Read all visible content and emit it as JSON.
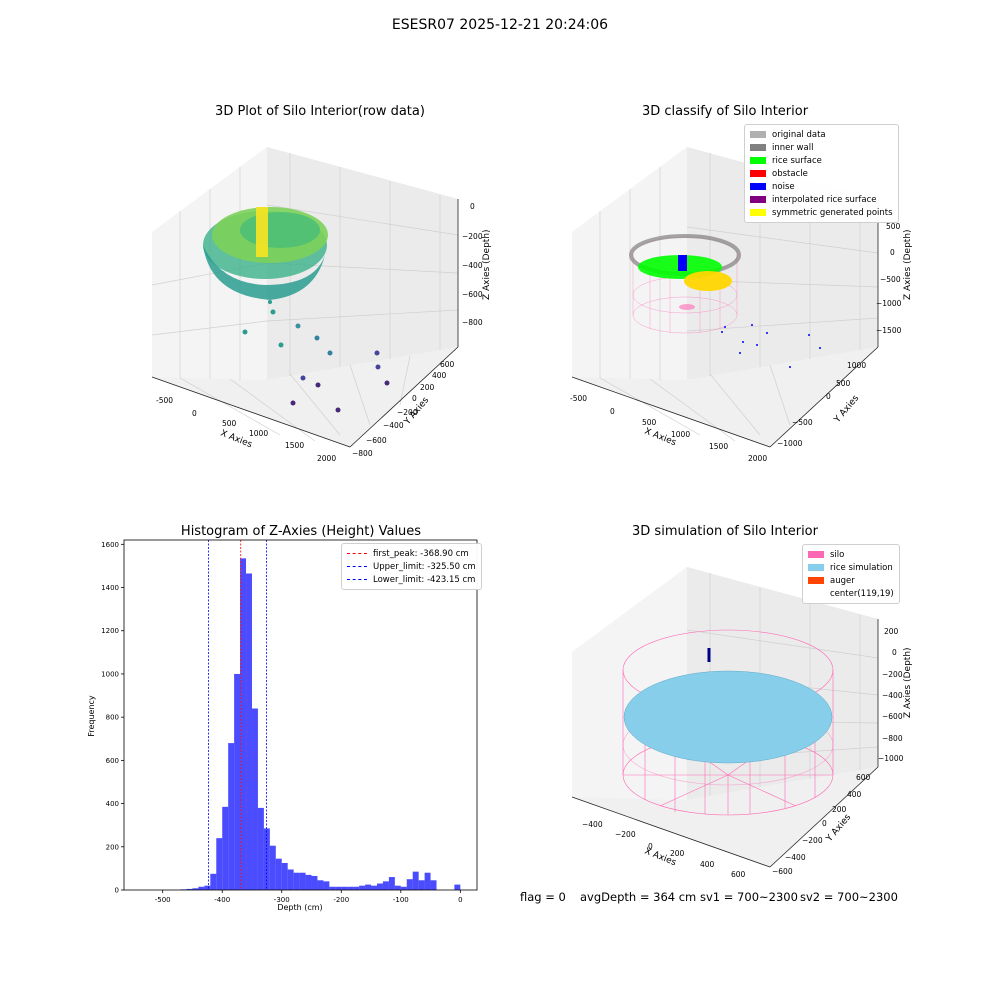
{
  "suptitle": "ESESR07 2025-12-21 20:24:06",
  "status": {
    "flag": "flag = 0",
    "avg": "avgDepth = 364 cm",
    "sv1": "sv1 = 700~2300",
    "sv2": "sv2 = 700~2300"
  },
  "plot1": {
    "title": "3D Plot of Silo Interior(row data)",
    "xlabel": "X Axies",
    "ylabel": "Y Axies",
    "zlabel": "Z Axies (Depth)",
    "xticks": [
      "-500",
      "0",
      "500",
      "1000",
      "1500",
      "2000"
    ],
    "yticks": [
      "−800",
      "−600",
      "−400",
      "−200",
      "0",
      "200",
      "400",
      "600"
    ],
    "zticks": [
      "0",
      "−200",
      "−400",
      "−600",
      "−800"
    ]
  },
  "plot2": {
    "title": "3D classify of Silo Interior",
    "xlabel": "X Axies",
    "ylabel": "Y Axies",
    "zlabel": "Z Axies (Depth)",
    "xticks": [
      "-500",
      "0",
      "500",
      "1000",
      "1500",
      "2000"
    ],
    "yticks": [
      "−1000",
      "−500",
      "0",
      "500",
      "1000"
    ],
    "zticks": [
      "500",
      "0",
      "−500",
      "−1000",
      "−1500"
    ],
    "legend": [
      {
        "label": "original data",
        "color": "#b0b0b0"
      },
      {
        "label": "inner wall",
        "color": "#808080"
      },
      {
        "label": "rice surface",
        "color": "#00ff00"
      },
      {
        "label": "obstacle",
        "color": "#ff0000"
      },
      {
        "label": "noise",
        "color": "#0000ff"
      },
      {
        "label": "interpolated rice surface",
        "color": "#800080"
      },
      {
        "label": "symmetric generated points",
        "color": "#ffff00"
      }
    ]
  },
  "plot4": {
    "title": "3D simulation of Silo Interior",
    "xlabel": "X Axies",
    "ylabel": "Y Axies",
    "zlabel": "Z Axies (Depth)",
    "xticks": [
      "−400",
      "−200",
      "0",
      "200",
      "400",
      "600"
    ],
    "yticks": [
      "−600",
      "−400",
      "−200",
      "0",
      "200",
      "400",
      "600"
    ],
    "zticks": [
      "200",
      "0",
      "−200",
      "−400",
      "−600",
      "−800",
      "−1000"
    ],
    "legend": [
      {
        "label": "silo",
        "color": "#ff69b4"
      },
      {
        "label": "rice simulation",
        "color": "#87ceeb"
      },
      {
        "label": "auger",
        "color": "#ff4500"
      },
      {
        "label": "center(119,19)",
        "color": ""
      }
    ]
  },
  "chart_data": {
    "type": "bar",
    "title": "Histogram of Z-Axies (Height) Values",
    "xlabel": "Depth (cm)",
    "ylabel": "Frequency",
    "xlim": [
      -565,
      28
    ],
    "ylim": [
      0,
      1620
    ],
    "xticks": [
      -500,
      -400,
      -300,
      -200,
      -100,
      0
    ],
    "yticks": [
      0,
      200,
      400,
      600,
      800,
      1000,
      1200,
      1400,
      1600
    ],
    "bar_color": "#0000ff",
    "bin_width": 10,
    "bins": [
      {
        "left": -470,
        "value": 3
      },
      {
        "left": -460,
        "value": 5
      },
      {
        "left": -450,
        "value": 8
      },
      {
        "left": -440,
        "value": 15
      },
      {
        "left": -430,
        "value": 20
      },
      {
        "left": -420,
        "value": 75
      },
      {
        "left": -410,
        "value": 240
      },
      {
        "left": -400,
        "value": 385
      },
      {
        "left": -390,
        "value": 680
      },
      {
        "left": -380,
        "value": 1000
      },
      {
        "left": -370,
        "value": 1535
      },
      {
        "left": -360,
        "value": 1465
      },
      {
        "left": -350,
        "value": 840
      },
      {
        "left": -340,
        "value": 380
      },
      {
        "left": -330,
        "value": 285
      },
      {
        "left": -320,
        "value": 205
      },
      {
        "left": -310,
        "value": 145
      },
      {
        "left": -300,
        "value": 125
      },
      {
        "left": -290,
        "value": 95
      },
      {
        "left": -280,
        "value": 80
      },
      {
        "left": -270,
        "value": 80
      },
      {
        "left": -260,
        "value": 70
      },
      {
        "left": -250,
        "value": 65
      },
      {
        "left": -240,
        "value": 45
      },
      {
        "left": -230,
        "value": 40
      },
      {
        "left": -220,
        "value": 15
      },
      {
        "left": -210,
        "value": 15
      },
      {
        "left": -200,
        "value": 15
      },
      {
        "left": -190,
        "value": 15
      },
      {
        "left": -180,
        "value": 15
      },
      {
        "left": -170,
        "value": 20
      },
      {
        "left": -160,
        "value": 25
      },
      {
        "left": -150,
        "value": 20
      },
      {
        "left": -140,
        "value": 30
      },
      {
        "left": -130,
        "value": 40
      },
      {
        "left": -120,
        "value": 60
      },
      {
        "left": -110,
        "value": 20
      },
      {
        "left": -100,
        "value": 15
      },
      {
        "left": -90,
        "value": 50
      },
      {
        "left": -80,
        "value": 85
      },
      {
        "left": -70,
        "value": 45
      },
      {
        "left": -60,
        "value": 80
      },
      {
        "left": -50,
        "value": 45
      },
      {
        "left": -10,
        "value": 25
      }
    ],
    "vlines": [
      {
        "x": -368.9,
        "label": "first_peak: -368.90 cm",
        "color": "#ff0000"
      },
      {
        "x": -325.5,
        "label": "Upper_limit: -325.50 cm",
        "color": "#0000ff"
      },
      {
        "x": -423.15,
        "label": "Lower_limit: -423.15 cm",
        "color": "#0000ff"
      }
    ]
  }
}
